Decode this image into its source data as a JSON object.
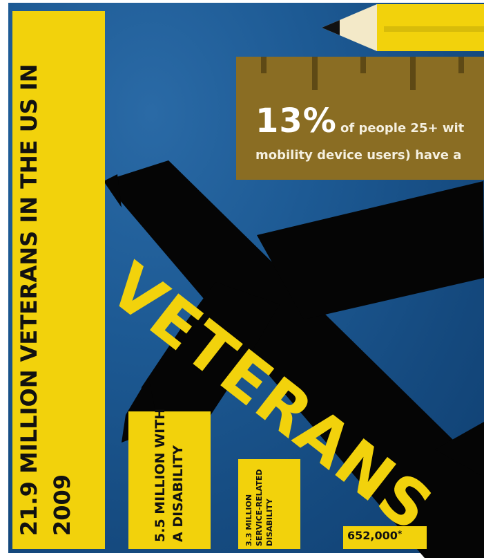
{
  "title_bar": {
    "text": "21.9 MILLION VETERANS IN THE US IN 2009"
  },
  "disability_bar": {
    "text": "5.5 MILLION WITH A DISABILITY"
  },
  "service_bar": {
    "text": "3.3 MILLION SERVICE-RELATED DISABILITY"
  },
  "count_bar": {
    "value": "652,000",
    "asterisk": "*"
  },
  "stat": {
    "number": "13%",
    "line1": "of people 25+ wit",
    "line2": "mobility device users) have a"
  },
  "headline": {
    "text": "VETERANS"
  },
  "icons": {
    "plane": "airplane-silhouette-icon",
    "pencil": "pencil-icon",
    "ruler": "ruler-icon"
  },
  "colors": {
    "background": "#1d5a94",
    "yellow": "#f2d20c",
    "ruler": "#8a6d23",
    "silhouette": "#050505"
  }
}
